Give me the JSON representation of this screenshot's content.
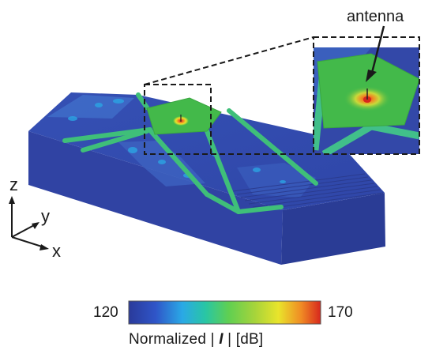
{
  "annotation": {
    "antenna": "antenna"
  },
  "axes": {
    "z": "z",
    "y": "y",
    "x": "x"
  },
  "colorbar": {
    "min": "120",
    "max": "170",
    "label_prefix": "Normalized | ",
    "label_symbol": "I",
    "label_suffix": " | [dB]",
    "range": [
      120,
      170
    ],
    "colors": [
      "#2a3a9a",
      "#2f55c8",
      "#2aa9e6",
      "#29c6a4",
      "#5fcf52",
      "#a8d43a",
      "#e9e42b",
      "#f08a24",
      "#d7271d"
    ]
  },
  "colors": {
    "model_blue": "#3346a6",
    "model_side": "#2a3c95",
    "plate_green": "#43b94a",
    "hotspot_red": "#d7271d"
  }
}
